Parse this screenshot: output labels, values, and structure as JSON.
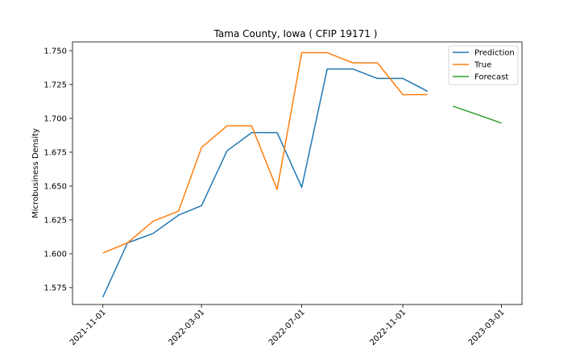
{
  "chart_data": {
    "type": "line",
    "title": "Tama County, Iowa ( CFIP 19171 )",
    "xlabel": "",
    "ylabel": "Microbusiness Density",
    "ylim": [
      1.5625,
      1.7565
    ],
    "yticks": [
      "1.575",
      "1.600",
      "1.625",
      "1.650",
      "1.675",
      "1.700",
      "1.725",
      "1.750"
    ],
    "xticks": [
      "2021-11-01",
      "2022-03-01",
      "2022-07-01",
      "2022-11-01",
      "2023-03-01"
    ],
    "legend": "top-right",
    "grid": false,
    "series": [
      {
        "name": "Prediction",
        "color": "#1f77b4",
        "x": [
          "2021-11-01",
          "2021-12-01",
          "2022-01-01",
          "2022-02-01",
          "2022-03-01",
          "2022-04-01",
          "2022-05-01",
          "2022-06-01",
          "2022-07-01",
          "2022-08-01",
          "2022-09-01",
          "2022-10-01",
          "2022-11-01",
          "2022-12-01"
        ],
        "values": [
          1.568,
          1.608,
          1.615,
          1.6285,
          1.6355,
          1.676,
          1.6895,
          1.6895,
          1.649,
          1.7365,
          1.7365,
          1.7295,
          1.7295,
          1.72
        ]
      },
      {
        "name": "True",
        "color": "#ff7f0e",
        "x": [
          "2021-11-01",
          "2021-12-01",
          "2022-01-01",
          "2022-02-01",
          "2022-03-01",
          "2022-04-01",
          "2022-05-01",
          "2022-06-01",
          "2022-07-01",
          "2022-08-01",
          "2022-09-01",
          "2022-10-01",
          "2022-11-01",
          "2022-12-01"
        ],
        "values": [
          1.6005,
          1.608,
          1.624,
          1.6315,
          1.6785,
          1.6945,
          1.6945,
          1.6475,
          1.7485,
          1.7485,
          1.741,
          1.741,
          1.7175,
          1.7175
        ]
      },
      {
        "name": "Forecast",
        "color": "#2ca02c",
        "x": [
          "2023-01-01",
          "2023-02-01",
          "2023-03-01"
        ],
        "values": [
          1.709,
          1.7025,
          1.6965
        ]
      }
    ]
  }
}
